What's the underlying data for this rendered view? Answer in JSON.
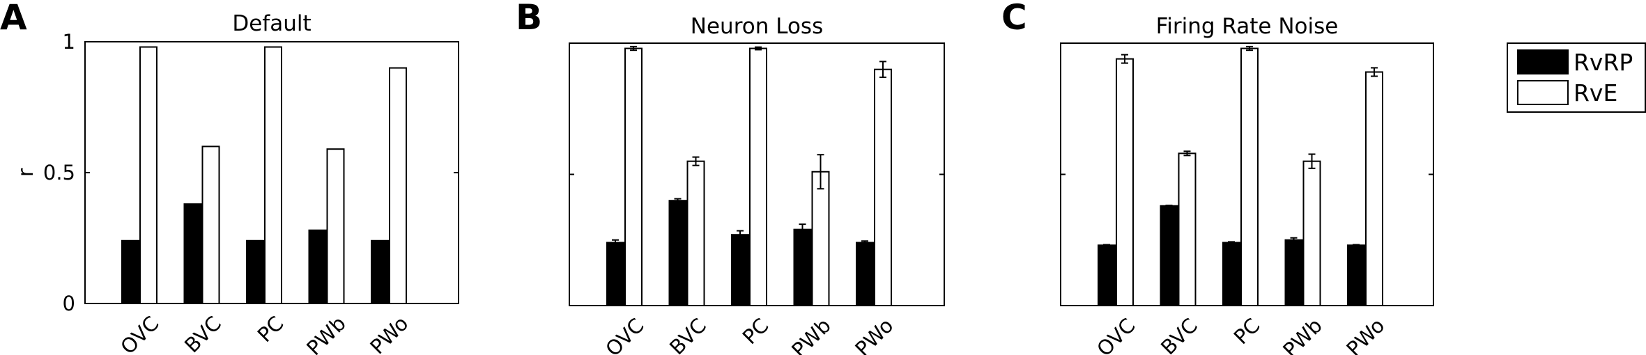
{
  "figure": {
    "legend": {
      "entries": [
        {
          "label": "RvRP",
          "color": "#000000"
        },
        {
          "label": "RvE",
          "color": "#ffffff"
        }
      ]
    }
  },
  "chart_data": [
    {
      "type": "bar",
      "panel_letter": "A",
      "title": "Default",
      "ylabel": "r",
      "ylim": [
        0,
        1
      ],
      "yticks": [
        "0",
        "0.5",
        "1"
      ],
      "categories": [
        "OVC",
        "BVC",
        "PC",
        "PWb",
        "PWo"
      ],
      "series": [
        {
          "name": "RvRP",
          "values": [
            0.24,
            0.38,
            0.24,
            0.28,
            0.24
          ],
          "errors": [
            0,
            0,
            0,
            0,
            0
          ]
        },
        {
          "name": "RvE",
          "values": [
            0.98,
            0.6,
            0.98,
            0.59,
            0.9
          ],
          "errors": [
            0,
            0,
            0,
            0,
            0
          ]
        }
      ]
    },
    {
      "type": "bar",
      "panel_letter": "B",
      "title": "Neuron Loss",
      "ylim": [
        0,
        1
      ],
      "categories": [
        "OVC",
        "BVC",
        "PC",
        "PWb",
        "PWo"
      ],
      "series": [
        {
          "name": "RvRP",
          "values": [
            0.24,
            0.4,
            0.27,
            0.29,
            0.24
          ],
          "errors": [
            0.01,
            0.007,
            0.015,
            0.02,
            0.006
          ]
        },
        {
          "name": "RvE",
          "values": [
            0.98,
            0.55,
            0.98,
            0.51,
            0.9
          ],
          "errors": [
            0.007,
            0.016,
            0.005,
            0.065,
            0.03
          ]
        }
      ]
    },
    {
      "type": "bar",
      "panel_letter": "C",
      "title": "Firing Rate Noise",
      "ylim": [
        0,
        1
      ],
      "categories": [
        "OVC",
        "BVC",
        "PC",
        "PWb",
        "PWo"
      ],
      "series": [
        {
          "name": "RvRP",
          "values": [
            0.23,
            0.38,
            0.24,
            0.25,
            0.23
          ],
          "errors": [
            0.002,
            0.002,
            0.003,
            0.008,
            0.002
          ]
        },
        {
          "name": "RvE",
          "values": [
            0.94,
            0.58,
            0.98,
            0.55,
            0.89
          ],
          "errors": [
            0.016,
            0.008,
            0.007,
            0.027,
            0.016
          ]
        }
      ]
    }
  ]
}
